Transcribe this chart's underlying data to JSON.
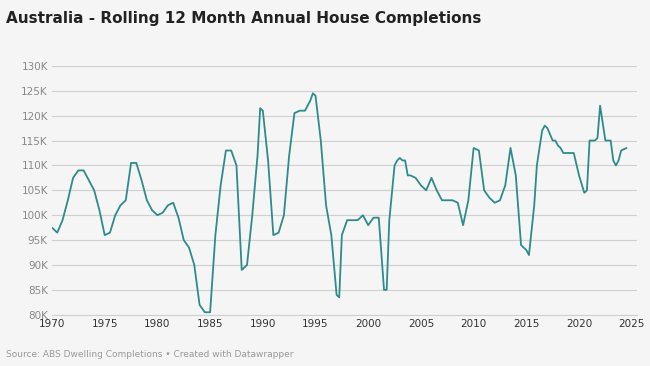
{
  "title": "Australia - Rolling 12 Month Annual House Completions",
  "source_text": "Source: ABS Dwelling Completions • Created with Datawrapper",
  "line_color": "#2e8b8b",
  "background_color": "#f5f5f5",
  "plot_bg_color": "#f5f5f5",
  "grid_color": "#d0d0d0",
  "ylim": [
    80000,
    130000
  ],
  "yticks": [
    80000,
    85000,
    90000,
    95000,
    100000,
    105000,
    110000,
    115000,
    120000,
    125000,
    130000
  ],
  "xlim": [
    1970,
    2025.5
  ],
  "xticks": [
    1970,
    1975,
    1980,
    1985,
    1990,
    1995,
    2000,
    2005,
    2010,
    2015,
    2020,
    2025
  ],
  "data": [
    [
      1970.0,
      97500
    ],
    [
      1970.5,
      96500
    ],
    [
      1971.0,
      99000
    ],
    [
      1971.5,
      103000
    ],
    [
      1972.0,
      107500
    ],
    [
      1972.5,
      109000
    ],
    [
      1973.0,
      109000
    ],
    [
      1973.5,
      107000
    ],
    [
      1974.0,
      105000
    ],
    [
      1974.5,
      101000
    ],
    [
      1975.0,
      96000
    ],
    [
      1975.5,
      96500
    ],
    [
      1976.0,
      100000
    ],
    [
      1976.5,
      102000
    ],
    [
      1977.0,
      103000
    ],
    [
      1977.5,
      110500
    ],
    [
      1978.0,
      110500
    ],
    [
      1978.5,
      107000
    ],
    [
      1979.0,
      103000
    ],
    [
      1979.5,
      101000
    ],
    [
      1980.0,
      100000
    ],
    [
      1980.5,
      100500
    ],
    [
      1981.0,
      102000
    ],
    [
      1981.5,
      102500
    ],
    [
      1982.0,
      99500
    ],
    [
      1982.5,
      95000
    ],
    [
      1983.0,
      93500
    ],
    [
      1983.5,
      90000
    ],
    [
      1984.0,
      82000
    ],
    [
      1984.5,
      80500
    ],
    [
      1985.0,
      80500
    ],
    [
      1985.5,
      96000
    ],
    [
      1986.0,
      106000
    ],
    [
      1986.5,
      113000
    ],
    [
      1987.0,
      113000
    ],
    [
      1987.5,
      110000
    ],
    [
      1988.0,
      89000
    ],
    [
      1988.5,
      90000
    ],
    [
      1989.0,
      100000
    ],
    [
      1989.5,
      112000
    ],
    [
      1989.75,
      121500
    ],
    [
      1990.0,
      121000
    ],
    [
      1990.5,
      111000
    ],
    [
      1991.0,
      96000
    ],
    [
      1991.5,
      96500
    ],
    [
      1992.0,
      100000
    ],
    [
      1992.5,
      112000
    ],
    [
      1993.0,
      120500
    ],
    [
      1993.5,
      121000
    ],
    [
      1994.0,
      121000
    ],
    [
      1994.5,
      123000
    ],
    [
      1994.75,
      124500
    ],
    [
      1995.0,
      124000
    ],
    [
      1995.5,
      115000
    ],
    [
      1996.0,
      102000
    ],
    [
      1996.5,
      96000
    ],
    [
      1997.0,
      84000
    ],
    [
      1997.25,
      83500
    ],
    [
      1997.5,
      96000
    ],
    [
      1998.0,
      99000
    ],
    [
      1998.5,
      99000
    ],
    [
      1999.0,
      99000
    ],
    [
      1999.5,
      100000
    ],
    [
      2000.0,
      98000
    ],
    [
      2000.5,
      99500
    ],
    [
      2001.0,
      99500
    ],
    [
      2001.5,
      85000
    ],
    [
      2001.75,
      85000
    ],
    [
      2002.0,
      99000
    ],
    [
      2002.5,
      110000
    ],
    [
      2002.75,
      111000
    ],
    [
      2003.0,
      111500
    ],
    [
      2003.25,
      111000
    ],
    [
      2003.5,
      111000
    ],
    [
      2003.75,
      108000
    ],
    [
      2004.0,
      108000
    ],
    [
      2004.5,
      107500
    ],
    [
      2005.0,
      106000
    ],
    [
      2005.5,
      105000
    ],
    [
      2006.0,
      107500
    ],
    [
      2006.5,
      105000
    ],
    [
      2007.0,
      103000
    ],
    [
      2007.5,
      103000
    ],
    [
      2008.0,
      103000
    ],
    [
      2008.5,
      102500
    ],
    [
      2009.0,
      98000
    ],
    [
      2009.5,
      103000
    ],
    [
      2010.0,
      113500
    ],
    [
      2010.5,
      113000
    ],
    [
      2011.0,
      105000
    ],
    [
      2011.5,
      103500
    ],
    [
      2012.0,
      102500
    ],
    [
      2012.5,
      103000
    ],
    [
      2013.0,
      106000
    ],
    [
      2013.5,
      113500
    ],
    [
      2014.0,
      108000
    ],
    [
      2014.5,
      94000
    ],
    [
      2014.75,
      93500
    ],
    [
      2015.0,
      93000
    ],
    [
      2015.25,
      92000
    ],
    [
      2015.5,
      97000
    ],
    [
      2015.75,
      102000
    ],
    [
      2016.0,
      110000
    ],
    [
      2016.5,
      117000
    ],
    [
      2016.75,
      118000
    ],
    [
      2017.0,
      117500
    ],
    [
      2017.5,
      115000
    ],
    [
      2017.75,
      115000
    ],
    [
      2018.0,
      114000
    ],
    [
      2018.25,
      113500
    ],
    [
      2018.5,
      112500
    ],
    [
      2019.0,
      112500
    ],
    [
      2019.5,
      112500
    ],
    [
      2020.0,
      108000
    ],
    [
      2020.5,
      104500
    ],
    [
      2020.75,
      105000
    ],
    [
      2021.0,
      115000
    ],
    [
      2021.5,
      115000
    ],
    [
      2021.75,
      115500
    ],
    [
      2022.0,
      122000
    ],
    [
      2022.5,
      115000
    ],
    [
      2023.0,
      115000
    ],
    [
      2023.25,
      111000
    ],
    [
      2023.5,
      110000
    ],
    [
      2023.75,
      111000
    ],
    [
      2024.0,
      113000
    ],
    [
      2024.5,
      113500
    ]
  ]
}
